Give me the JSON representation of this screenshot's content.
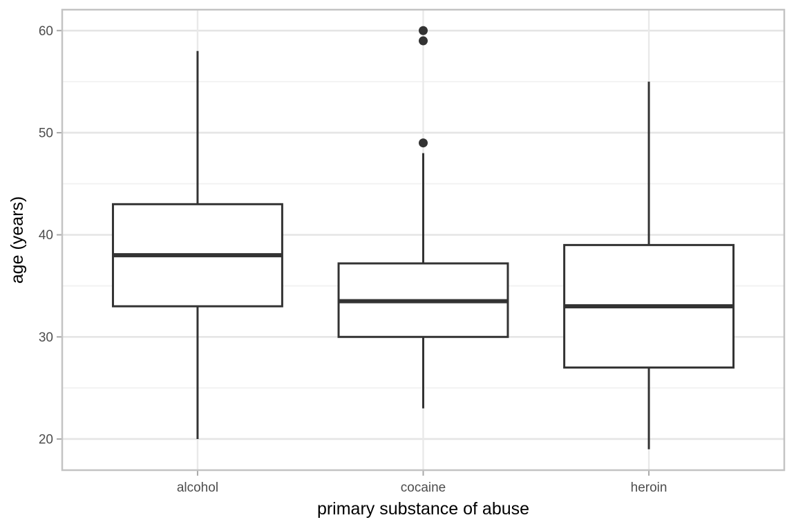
{
  "chart_data": {
    "type": "boxplot",
    "title": "",
    "xlabel": "primary substance of abuse",
    "ylabel": "age (years)",
    "categories": [
      "alcohol",
      "cocaine",
      "heroin"
    ],
    "series": [
      {
        "name": "alcohol",
        "min": 20,
        "q1": 33,
        "median": 38,
        "q3": 43,
        "max": 58,
        "outliers": []
      },
      {
        "name": "cocaine",
        "min": 23,
        "q1": 30,
        "median": 33.5,
        "q3": 37.2,
        "max": 48,
        "outliers": [
          49,
          59,
          60
        ]
      },
      {
        "name": "heroin",
        "min": 19,
        "q1": 27,
        "median": 33,
        "q3": 39,
        "max": 55,
        "outliers": []
      }
    ],
    "y_ticks": [
      20,
      30,
      40,
      50,
      60
    ],
    "y_minor_ticks": [
      25,
      35,
      45,
      55
    ],
    "ylim": [
      16.95,
      62.05
    ],
    "grid": "major+minor, horizontal major/minor + vertical at categories",
    "legend": "none",
    "colors": {
      "box_stroke": "#333333",
      "box_fill": "#ffffff",
      "median": "#333333",
      "outlier": "#333333",
      "grid_major": "#e5e5e5",
      "grid_minor": "#f2f2f2",
      "x_grid": "#e9e9e9",
      "panel_border": "#c3c3c3",
      "tick_mark": "#a8a8a8",
      "tick_label": "#4d4d4d",
      "axis_title": "#000000",
      "background": "#ffffff"
    }
  }
}
